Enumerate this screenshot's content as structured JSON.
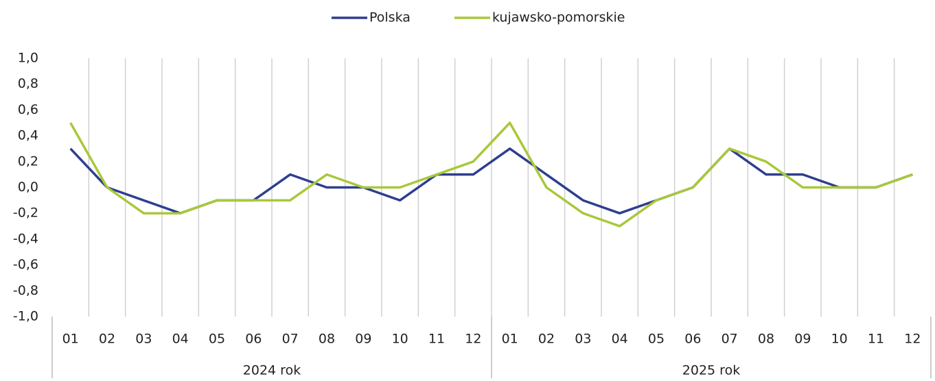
{
  "chart_data": {
    "type": "line",
    "categories": [
      "01",
      "02",
      "03",
      "04",
      "05",
      "06",
      "07",
      "08",
      "09",
      "10",
      "11",
      "12",
      "01",
      "02",
      "03",
      "04",
      "05",
      "06",
      "07",
      "08",
      "09",
      "10",
      "11",
      "12"
    ],
    "groups": [
      "2024 rok",
      "2025 rok"
    ],
    "series": [
      {
        "name": "Polska",
        "color": "#2e3e8f",
        "values": [
          0.3,
          0.0,
          -0.1,
          -0.2,
          -0.1,
          -0.1,
          0.1,
          0.0,
          0.0,
          -0.1,
          0.1,
          0.1,
          0.3,
          0.1,
          -0.1,
          -0.2,
          -0.1,
          0.0,
          0.3,
          0.1,
          0.1,
          0.0,
          0.0,
          0.1
        ]
      },
      {
        "name": "kujawsko-pomorskie",
        "color": "#a8c83a",
        "values": [
          0.5,
          0.0,
          -0.2,
          -0.2,
          -0.1,
          -0.1,
          -0.1,
          0.1,
          0.0,
          0.0,
          0.1,
          0.2,
          0.5,
          0.0,
          -0.2,
          -0.3,
          -0.1,
          0.0,
          0.3,
          0.2,
          0.0,
          0.0,
          0.0,
          0.1
        ]
      }
    ],
    "ylim": [
      -1.0,
      1.0
    ],
    "yticks": [
      {
        "value": 1.0,
        "label": "1,0"
      },
      {
        "value": 0.8,
        "label": "0,8"
      },
      {
        "value": 0.6,
        "label": "0,6"
      },
      {
        "value": 0.4,
        "label": "0,4"
      },
      {
        "value": 0.2,
        "label": "0,2"
      },
      {
        "value": 0.0,
        "label": "0,0"
      },
      {
        "value": -0.2,
        "label": "-0,2"
      },
      {
        "value": -0.4,
        "label": "-0,4"
      },
      {
        "value": -0.6,
        "label": "-0,6"
      },
      {
        "value": -0.8,
        "label": "-0,8"
      },
      {
        "value": -1.0,
        "label": "-1,0"
      }
    ],
    "legend": "top"
  }
}
